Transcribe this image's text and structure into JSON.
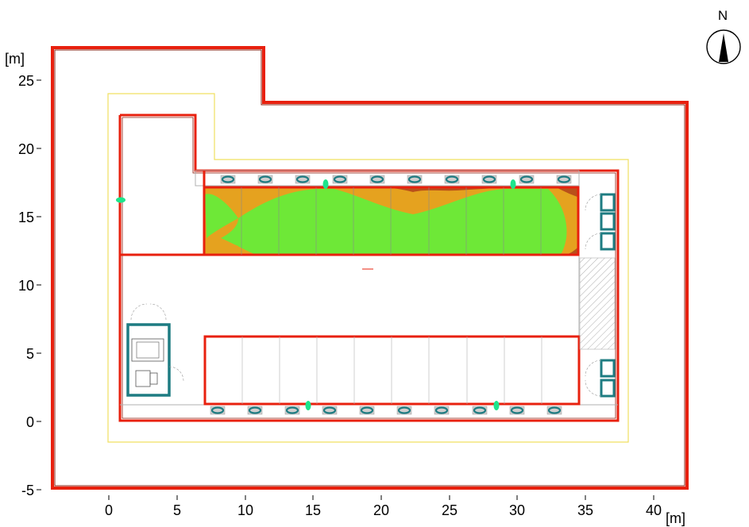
{
  "plan": {
    "x_unit": "[m]",
    "y_unit": "[m]",
    "x_ticks": [
      "0",
      "5",
      "10",
      "15",
      "20",
      "25",
      "30",
      "35",
      "40"
    ],
    "y_ticks": [
      "-5",
      "0",
      "5",
      "10",
      "15",
      "20",
      "25"
    ],
    "compass_label": "N"
  },
  "colors": {
    "boundary": "#e8200e",
    "yellow_line": "#f0e060",
    "luminaire": "#1e7c82",
    "marker": "#1de58c",
    "iso_green": "#6ee837",
    "iso_orange": "#e5a21f",
    "iso_brown": "#b9501a"
  }
}
